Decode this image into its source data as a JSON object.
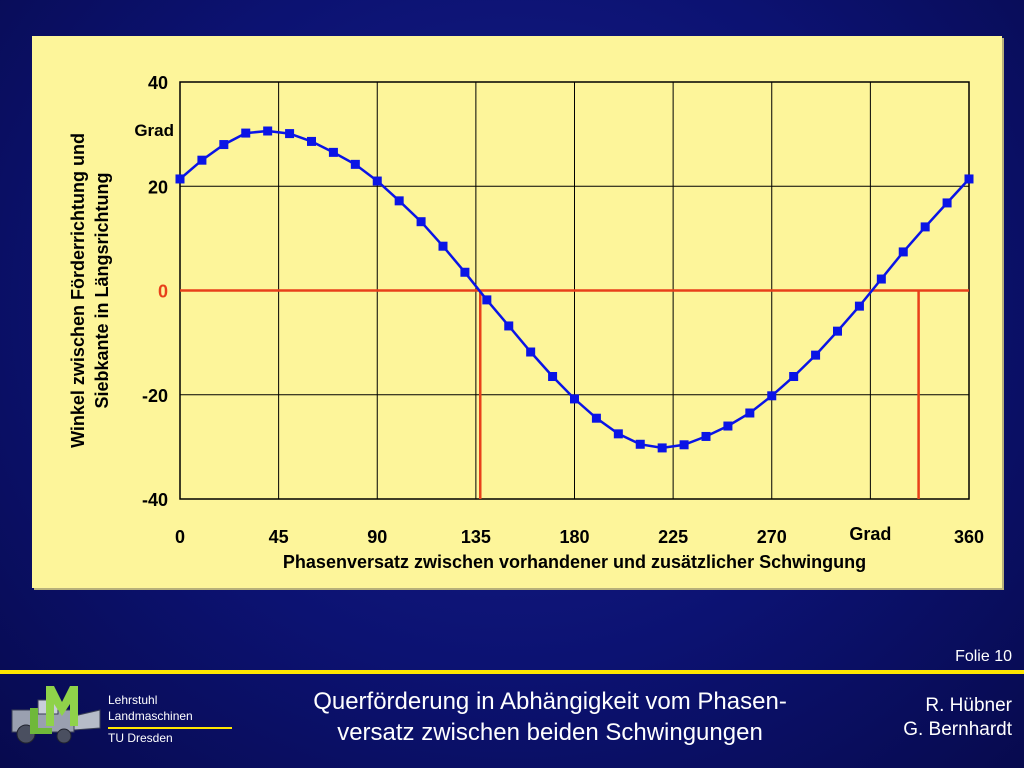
{
  "chart_data": {
    "type": "line",
    "xlabel": "Phasenversatz zwischen vorhandener und zusätzlicher Schwingung",
    "ylabel": [
      "Winkel zwischen Förderrichtung und",
      "Siebkante in Längsrichtung"
    ],
    "x_unit_label": "Grad",
    "y_unit_label": "Grad",
    "xlim": [
      0,
      360
    ],
    "ylim": [
      -40,
      40
    ],
    "x_ticks": [
      "0",
      "45",
      "90",
      "135",
      "180",
      "225",
      "270",
      "",
      "360"
    ],
    "y_ticks": [
      "40",
      "20",
      "0",
      "-20",
      "-40"
    ],
    "grid": true,
    "series": [
      {
        "color": "#0a14e6",
        "marker": "square",
        "x": [
          0,
          10,
          20,
          30,
          40,
          50,
          60,
          70,
          80,
          90,
          100,
          110,
          120,
          130,
          140,
          150,
          160,
          170,
          180,
          190,
          200,
          210,
          220,
          230,
          240,
          250,
          260,
          270,
          280,
          290,
          300,
          310,
          320,
          330,
          340,
          350,
          360
        ],
        "y": [
          21.4,
          25.0,
          28.0,
          30.2,
          30.6,
          30.1,
          28.6,
          26.5,
          24.2,
          21.0,
          17.2,
          13.2,
          8.5,
          3.5,
          -1.8,
          -6.8,
          -11.8,
          -16.5,
          -20.8,
          -24.5,
          -27.5,
          -29.5,
          -30.2,
          -29.6,
          -28.0,
          -26.0,
          -23.5,
          -20.2,
          -16.5,
          -12.4,
          -7.8,
          -3.0,
          2.2,
          7.4,
          12.2,
          16.8,
          21.4
        ]
      }
    ],
    "reference_lines": {
      "color": "#e8401a",
      "y": 0,
      "x": [
        137,
        337
      ]
    },
    "zero_label_color": "#e8401a"
  },
  "footer": {
    "slide_number": "Folie 10",
    "chair_line1": "Lehrstuhl",
    "chair_line2": "Landmaschinen",
    "chair_line3": "TU Dresden",
    "title_line1": "Querförderung in Abhängigkeit vom Phasen-",
    "title_line2": "versatz zwischen beiden Schwingungen",
    "author1": "R. Hübner",
    "author2": "G. Bernhardt"
  },
  "colors": {
    "background": "#0c1272",
    "panel": "#fdf59a",
    "accent": "#ffe600",
    "series": "#0a14e6",
    "reference": "#e8401a"
  }
}
